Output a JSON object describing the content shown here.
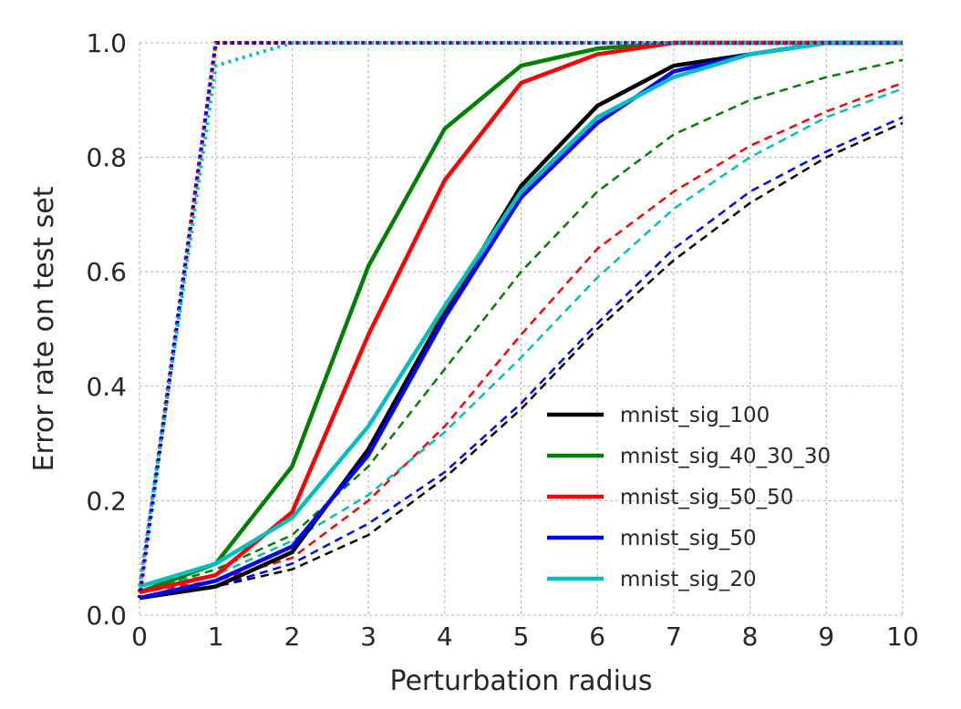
{
  "chart_data": {
    "type": "line",
    "xlabel": "Perturbation radius",
    "ylabel": "Error rate on test set",
    "xlim": [
      0,
      10
    ],
    "ylim": [
      0.0,
      1.0
    ],
    "xticks": [
      "0",
      "1",
      "2",
      "3",
      "4",
      "5",
      "6",
      "7",
      "8",
      "9",
      "10"
    ],
    "yticks": [
      "0.0",
      "0.2",
      "0.4",
      "0.6",
      "0.8",
      "1.0"
    ],
    "grid": true,
    "legend_position": "lower-right",
    "x": [
      0,
      1,
      2,
      3,
      4,
      5,
      6,
      7,
      8,
      9,
      10
    ],
    "series": [
      {
        "name": "mnist_sig_100",
        "color": "#000000",
        "solid": [
          0.03,
          0.05,
          0.11,
          0.29,
          0.53,
          0.75,
          0.89,
          0.96,
          0.98,
          1.0,
          1.0
        ],
        "dashed": [
          0.03,
          0.05,
          0.08,
          0.14,
          0.24,
          0.36,
          0.5,
          0.62,
          0.72,
          0.8,
          0.86
        ],
        "dotted": [
          0.03,
          1.0,
          1.0,
          1.0,
          1.0,
          1.0,
          1.0,
          1.0,
          1.0,
          1.0,
          1.0
        ]
      },
      {
        "name": "mnist_sig_40_30_30",
        "color": "#008000",
        "solid": [
          0.04,
          0.09,
          0.26,
          0.61,
          0.85,
          0.96,
          0.99,
          1.0,
          1.0,
          1.0,
          1.0
        ],
        "dashed": [
          0.04,
          0.08,
          0.14,
          0.26,
          0.43,
          0.6,
          0.74,
          0.84,
          0.9,
          0.94,
          0.97
        ],
        "dotted": [
          0.04,
          1.0,
          1.0,
          1.0,
          1.0,
          1.0,
          1.0,
          1.0,
          1.0,
          1.0,
          1.0
        ]
      },
      {
        "name": "mnist_sig_50_50",
        "color": "#ff0000",
        "solid": [
          0.04,
          0.07,
          0.18,
          0.49,
          0.76,
          0.93,
          0.98,
          1.0,
          1.0,
          1.0,
          1.0
        ],
        "dashed": [
          0.04,
          0.06,
          0.1,
          0.2,
          0.33,
          0.49,
          0.64,
          0.74,
          0.82,
          0.88,
          0.93
        ],
        "dotted": [
          0.04,
          1.0,
          1.0,
          1.0,
          1.0,
          1.0,
          1.0,
          1.0,
          1.0,
          1.0,
          1.0
        ]
      },
      {
        "name": "mnist_sig_50",
        "color": "#0000ff",
        "solid": [
          0.03,
          0.06,
          0.12,
          0.28,
          0.52,
          0.73,
          0.86,
          0.95,
          0.98,
          1.0,
          1.0
        ],
        "dashed": [
          0.03,
          0.05,
          0.09,
          0.16,
          0.25,
          0.37,
          0.51,
          0.64,
          0.74,
          0.81,
          0.87
        ],
        "dotted": [
          0.03,
          1.0,
          1.0,
          1.0,
          1.0,
          1.0,
          1.0,
          1.0,
          1.0,
          1.0,
          1.0
        ]
      },
      {
        "name": "mnist_sig_20",
        "color": "#00bfbf",
        "solid": [
          0.05,
          0.09,
          0.17,
          0.33,
          0.54,
          0.74,
          0.87,
          0.94,
          0.98,
          1.0,
          1.0
        ],
        "dashed": [
          0.05,
          0.07,
          0.13,
          0.21,
          0.32,
          0.45,
          0.59,
          0.71,
          0.8,
          0.87,
          0.92
        ],
        "dotted": [
          0.05,
          0.96,
          1.0,
          1.0,
          1.0,
          1.0,
          1.0,
          1.0,
          1.0,
          1.0,
          1.0
        ]
      }
    ]
  }
}
